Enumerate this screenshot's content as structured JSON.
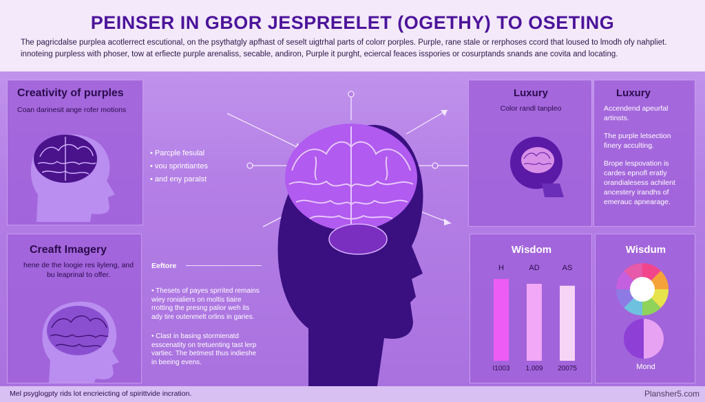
{
  "header": {
    "title": "PEINSER IN GBOR JESPREELET (OGETHY) TO OSETING",
    "intro": "The pagricdalse purplea acotlerrect escutional, on the psythatgly apfhast of seselt uigtrhal parts of colorr porples. Purple, rane stale or rerphoses ccord that loused to lmodh ofy nahpliet. innoteing purpless with phoser, tow at erfiecte purple arenaliss, secable, andiron, Purple it purght, eciercal feaces isspories or cosurptands snands ane covita and locating."
  },
  "creativity": {
    "title": "Creativity of purples",
    "subtitle": "Coan darinesit ange rofer motions",
    "bullets": [
      "Parcple fesulal",
      "vou sprintiantes",
      "and eny paralst"
    ]
  },
  "craft": {
    "title": "Creaft Imagery",
    "subtitle": "hene de the loogie res liyleng, and bu leaprinal to offer.",
    "section_label": "Eeftore",
    "bullets": [
      "Thesets of payes sprrited remains wiey ronialiers on moltis tiaire rrotting the presng palior weh its ady tire outenmelt orlins in garies.",
      "Clast in basing stormienatd esscenatity on tretuenting tast lerp vartiec. The betmest thus indieshe in beeing evens."
    ]
  },
  "luxury_left": {
    "title": "Luxury",
    "subtitle": "Color randl tanpleo"
  },
  "luxury_right": {
    "title": "Luxury",
    "paragraphs": [
      "Accendend apeurfal artinsts.",
      "The purple letsection finery acculting.",
      "Brope lespovation is cardes epnofl eratly orandialesess achilent ancestery irandhs of emerauc apnearage."
    ]
  },
  "wisdom_left": {
    "title": "Wisdom",
    "chart_data": {
      "type": "bar",
      "categories": [
        "H",
        "AD",
        "AS"
      ],
      "values": [
        0.85,
        0.8,
        0.78
      ],
      "value_labels": [
        "I1003",
        "1.009",
        "20075"
      ],
      "colors": [
        "#ee5cf6",
        "#f2a8f6",
        "#f6d4f6"
      ]
    }
  },
  "wisdom_right": {
    "title": "Wisdum",
    "caption": "Mond",
    "wheel_colors": [
      "#f2468c",
      "#f6a23a",
      "#e7e34c",
      "#8fd35a",
      "#6fc1e0",
      "#8e7ae4",
      "#c45fe0",
      "#e65aa9"
    ]
  },
  "footer": {
    "text": "Mel psyglogpty rids lot encrieicting of spirittvide incration.",
    "watermark": "Plansher5.com"
  },
  "colors": {
    "title": "#4c149a",
    "head_dark": "#3a1080",
    "brain": "#b15bf0"
  },
  "icons": [
    "brain-head-icon",
    "brain-icon",
    "color-wheel-icon",
    "arrow-icon"
  ]
}
